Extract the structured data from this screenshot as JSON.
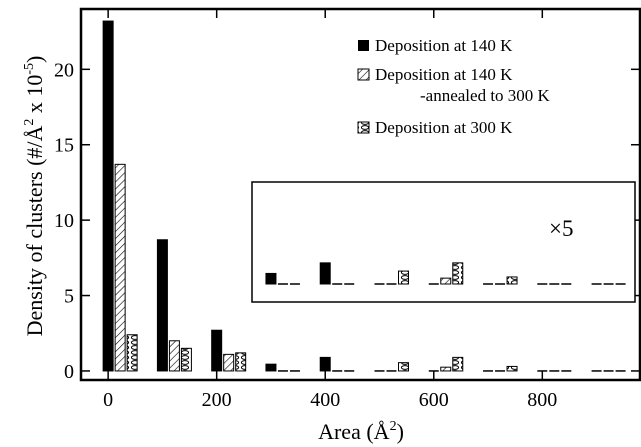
{
  "chart_data": {
    "type": "bar",
    "xlabel": "Area (Å",
    "xlabel_sup": "2",
    "xlabel_close": ")",
    "ylabel_pre": "Density of clusters (#/Å",
    "ylabel_sup1": "2",
    "ylabel_mid": " x 10",
    "ylabel_sup2": "-5",
    "ylabel_close": ")",
    "x_ticks": [
      0,
      200,
      400,
      600,
      800
    ],
    "y_ticks": [
      0,
      5,
      10,
      15,
      20
    ],
    "xlim": [
      -50,
      980
    ],
    "ylim": [
      -0.6,
      24
    ],
    "bar_positions": [
      0,
      100,
      200,
      300,
      400,
      500,
      600,
      700,
      800,
      900
    ],
    "series": [
      {
        "name": "Deposition at 140 K",
        "pattern": "solid",
        "values": [
          23.2,
          8.7,
          2.7,
          0.45,
          0.9,
          0,
          0,
          0,
          0,
          0
        ]
      },
      {
        "name": "Deposition at 140 K",
        "name_line2": "-annealed to 300 K",
        "pattern": "hatch",
        "values": [
          13.7,
          2.0,
          1.1,
          0,
          0,
          0,
          0.25,
          0,
          0,
          0
        ]
      },
      {
        "name": "Deposition at 300 K",
        "pattern": "circles",
        "values": [
          2.4,
          1.5,
          1.2,
          0,
          0,
          0.55,
          0.9,
          0.3,
          0,
          0
        ]
      }
    ],
    "legend_position": "top-right",
    "inset": {
      "label": "×5",
      "multiplier": 5,
      "bar_positions": [
        300,
        400,
        500,
        600,
        700,
        800,
        900
      ]
    },
    "colors": {
      "bar": "#000000",
      "background": "#ffffff"
    }
  }
}
